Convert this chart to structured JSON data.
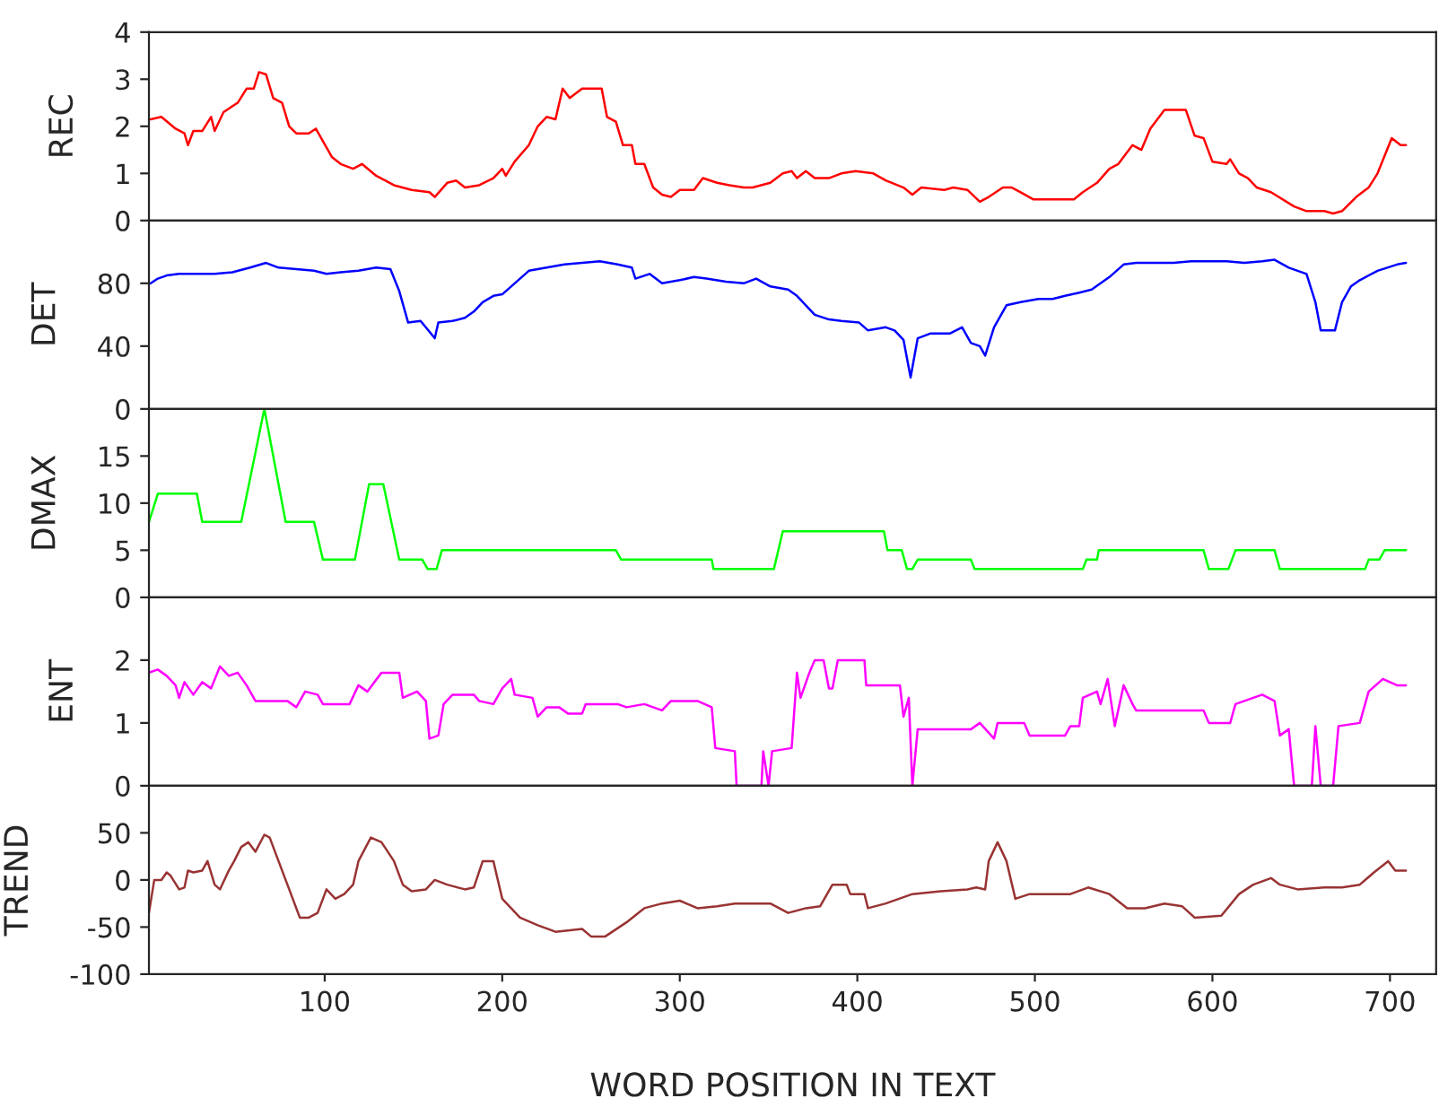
{
  "chart_data": [
    {
      "type": "line",
      "ylabel": "REC",
      "xlim": [
        1,
        726
      ],
      "xticks": [
        100,
        200,
        300,
        400,
        500,
        600,
        700
      ],
      "ylim": [
        0,
        4
      ],
      "yticks": [
        0,
        1,
        2,
        3,
        4
      ],
      "tick_labels": "y",
      "grid": false,
      "x": [
        2,
        8,
        16,
        21,
        23,
        26,
        31,
        36,
        38,
        43,
        51,
        56,
        60,
        63,
        67,
        71,
        76,
        80,
        84,
        91,
        95,
        104,
        109,
        116,
        121,
        129,
        139,
        149,
        159,
        162,
        169,
        174,
        179,
        187,
        195,
        200,
        202,
        207,
        215,
        220,
        225,
        230,
        234,
        238,
        245,
        256,
        259,
        264,
        268,
        273,
        275,
        280,
        285,
        290,
        295,
        300,
        308,
        313,
        321,
        328,
        336,
        341,
        351,
        358,
        363,
        366,
        371,
        376,
        384,
        391,
        399,
        409,
        416,
        426,
        431,
        436,
        449,
        454,
        462,
        469,
        474,
        482,
        487,
        492,
        499,
        512,
        522,
        527,
        535,
        542,
        547,
        555,
        560,
        565,
        573,
        585,
        590,
        595,
        600,
        608,
        610,
        615,
        620,
        625,
        633,
        646,
        653,
        663,
        668,
        673,
        681,
        688,
        693,
        701,
        706,
        709
      ],
      "series": [
        {
          "color": "#ff0000",
          "values": [
            2.15,
            2.2,
            1.95,
            1.85,
            1.6,
            1.9,
            1.9,
            2.2,
            1.9,
            2.3,
            2.5,
            2.8,
            2.8,
            3.15,
            3.1,
            2.6,
            2.5,
            2.0,
            1.85,
            1.85,
            1.95,
            1.35,
            1.2,
            1.1,
            1.2,
            0.95,
            0.75,
            0.65,
            0.6,
            0.5,
            0.8,
            0.85,
            0.7,
            0.75,
            0.9,
            1.1,
            0.95,
            1.25,
            1.6,
            2.0,
            2.2,
            2.15,
            2.8,
            2.6,
            2.8,
            2.8,
            2.2,
            2.1,
            1.6,
            1.6,
            1.2,
            1.2,
            0.7,
            0.55,
            0.5,
            0.65,
            0.65,
            0.9,
            0.8,
            0.75,
            0.7,
            0.7,
            0.8,
            1.0,
            1.05,
            0.9,
            1.05,
            0.9,
            0.9,
            1.0,
            1.05,
            1.0,
            0.85,
            0.7,
            0.55,
            0.7,
            0.65,
            0.7,
            0.65,
            0.4,
            0.5,
            0.7,
            0.7,
            0.6,
            0.45,
            0.45,
            0.45,
            0.6,
            0.8,
            1.1,
            1.2,
            1.6,
            1.5,
            1.95,
            2.35,
            2.35,
            1.8,
            1.75,
            1.25,
            1.2,
            1.3,
            1.0,
            0.9,
            0.7,
            0.6,
            0.3,
            0.2,
            0.2,
            0.15,
            0.2,
            0.5,
            0.7,
            1.0,
            1.75,
            1.6,
            1.6
          ]
        }
      ]
    },
    {
      "type": "line",
      "ylabel": "DET",
      "xlim": [
        1,
        726
      ],
      "xticks": [
        100,
        200,
        300,
        400,
        500,
        600,
        700
      ],
      "ylim": [
        0,
        120
      ],
      "yticks": [
        0,
        40,
        80
      ],
      "tick_labels": "y",
      "grid": false,
      "x": [
        2,
        6,
        11,
        18,
        28,
        38,
        48,
        58,
        67,
        74,
        84,
        94,
        101,
        109,
        119,
        129,
        137,
        142,
        147,
        154,
        162,
        164,
        172,
        179,
        184,
        189,
        195,
        200,
        207,
        215,
        225,
        235,
        245,
        255,
        265,
        273,
        275,
        283,
        290,
        300,
        308,
        315,
        326,
        336,
        343,
        351,
        361,
        366,
        371,
        376,
        384,
        391,
        401,
        406,
        416,
        421,
        426,
        430,
        434,
        441,
        452,
        459,
        464,
        469,
        472,
        477,
        484,
        492,
        502,
        510,
        517,
        525,
        532,
        542,
        550,
        557,
        567,
        578,
        588,
        598,
        608,
        618,
        628,
        635,
        643,
        653,
        658,
        661,
        669,
        673,
        678,
        683,
        693,
        704,
        709
      ],
      "series": [
        {
          "color": "#0000ff",
          "values": [
            80,
            83,
            85,
            86,
            86,
            86,
            87,
            90,
            93,
            90,
            89,
            88,
            86,
            87,
            88,
            90,
            89,
            75,
            55,
            56,
            45,
            55,
            56,
            58,
            62,
            68,
            72,
            73,
            80,
            88,
            90,
            92,
            93,
            94,
            92,
            90,
            83,
            86,
            80,
            82,
            84,
            83,
            81,
            80,
            83,
            78,
            76,
            72,
            66,
            60,
            57,
            56,
            55,
            50,
            52,
            50,
            44,
            20,
            45,
            48,
            48,
            52,
            42,
            40,
            34,
            52,
            66,
            68,
            70,
            70,
            72,
            74,
            76,
            84,
            92,
            93,
            93,
            93,
            94,
            94,
            94,
            93,
            94,
            95,
            90,
            86,
            68,
            50,
            50,
            68,
            78,
            82,
            88,
            92,
            93
          ]
        }
      ]
    },
    {
      "type": "line",
      "ylabel": "DMAX",
      "xlim": [
        1,
        726
      ],
      "xticks": [
        100,
        200,
        300,
        400,
        500,
        600,
        700
      ],
      "ylim": [
        0,
        20
      ],
      "yticks": [
        0,
        5,
        10,
        15
      ],
      "tick_labels": "y",
      "grid": false,
      "x": [
        1,
        6,
        28,
        31,
        53,
        66,
        78,
        94,
        99,
        117,
        125,
        133,
        142,
        155,
        158,
        163,
        166,
        264,
        267,
        318,
        319,
        353,
        358,
        415,
        417,
        425,
        428,
        431,
        434,
        464,
        466,
        527,
        529,
        535,
        536,
        595,
        598,
        609,
        613,
        635,
        638,
        686,
        688,
        694,
        697,
        709
      ],
      "series": [
        {
          "color": "#00ff00",
          "values": [
            8,
            11,
            11,
            8,
            8,
            20,
            8,
            8,
            4,
            4,
            12,
            12,
            4,
            4,
            3,
            3,
            5,
            5,
            4,
            4,
            3,
            3,
            7,
            7,
            5,
            5,
            3,
            3,
            4,
            4,
            3,
            3,
            4,
            4,
            5,
            5,
            3,
            3,
            5,
            5,
            3,
            3,
            4,
            4,
            5,
            5
          ]
        }
      ]
    },
    {
      "type": "line",
      "ylabel": "ENT",
      "xlim": [
        1,
        726
      ],
      "xticks": [
        100,
        200,
        300,
        400,
        500,
        600,
        700
      ],
      "ylim": [
        0,
        3
      ],
      "yticks": [
        0,
        1,
        2
      ],
      "tick_labels": "y",
      "grid": false,
      "x": [
        1,
        6,
        11,
        16,
        18,
        21,
        26,
        31,
        36,
        41,
        46,
        51,
        56,
        61,
        79,
        84,
        89,
        96,
        99,
        114,
        119,
        124,
        132,
        142,
        144,
        152,
        157,
        159,
        164,
        167,
        172,
        184,
        187,
        195,
        200,
        205,
        207,
        217,
        220,
        225,
        232,
        237,
        245,
        247,
        265,
        270,
        280,
        290,
        295,
        310,
        318,
        320,
        331,
        332,
        346,
        347,
        350,
        352,
        363,
        366,
        368,
        373,
        376,
        381,
        384,
        386,
        389,
        404,
        405,
        424,
        426,
        429,
        431,
        434,
        464,
        469,
        477,
        479,
        494,
        497,
        517,
        520,
        525,
        527,
        535,
        537,
        541,
        545,
        550,
        555,
        557,
        573,
        595,
        598,
        610,
        613,
        628,
        635,
        638,
        643,
        646,
        656,
        658,
        661,
        668,
        671,
        683,
        688,
        696,
        704,
        709
      ],
      "series": [
        {
          "color": "#ff00ff",
          "values": [
            1.8,
            1.85,
            1.75,
            1.6,
            1.4,
            1.65,
            1.45,
            1.65,
            1.55,
            1.9,
            1.75,
            1.8,
            1.6,
            1.35,
            1.35,
            1.25,
            1.5,
            1.45,
            1.3,
            1.3,
            1.6,
            1.5,
            1.8,
            1.8,
            1.4,
            1.5,
            1.35,
            0.75,
            0.8,
            1.3,
            1.45,
            1.45,
            1.35,
            1.3,
            1.55,
            1.7,
            1.45,
            1.4,
            1.1,
            1.25,
            1.25,
            1.15,
            1.15,
            1.3,
            1.3,
            1.25,
            1.3,
            1.2,
            1.35,
            1.35,
            1.25,
            0.6,
            0.55,
            0,
            0,
            0.55,
            0,
            0.55,
            0.6,
            1.8,
            1.4,
            1.8,
            2.0,
            2.0,
            1.55,
            1.55,
            2.0,
            2.0,
            1.6,
            1.6,
            1.1,
            1.4,
            0,
            0.9,
            0.9,
            1.0,
            0.75,
            1.0,
            1.0,
            0.8,
            0.8,
            0.95,
            0.95,
            1.4,
            1.5,
            1.3,
            1.7,
            0.95,
            1.6,
            1.3,
            1.2,
            1.2,
            1.2,
            1.0,
            1.0,
            1.3,
            1.45,
            1.35,
            0.8,
            0.9,
            0,
            0,
            0.95,
            0,
            0,
            0.95,
            1.0,
            1.5,
            1.7,
            1.6,
            1.6
          ]
        }
      ]
    },
    {
      "type": "line",
      "ylabel": "TREND",
      "xlabel": "WORD POSITION IN TEXT",
      "xlim": [
        1,
        726
      ],
      "xticks": [
        100,
        200,
        300,
        400,
        500,
        600,
        700
      ],
      "ylim": [
        -100,
        100
      ],
      "yticks": [
        -100,
        -50,
        0,
        50
      ],
      "grid": false,
      "x": [
        1,
        4,
        8,
        11,
        13,
        18,
        21,
        23,
        26,
        31,
        34,
        38,
        41,
        46,
        49,
        53,
        57,
        61,
        66,
        69,
        74,
        79,
        86,
        91,
        96,
        101,
        106,
        111,
        116,
        119,
        126,
        132,
        139,
        144,
        149,
        157,
        162,
        169,
        179,
        184,
        189,
        195,
        200,
        210,
        220,
        230,
        245,
        250,
        258,
        270,
        280,
        290,
        300,
        310,
        321,
        331,
        341,
        351,
        361,
        371,
        379,
        386,
        394,
        396,
        404,
        406,
        416,
        431,
        447,
        462,
        467,
        472,
        474,
        479,
        484,
        489,
        497,
        512,
        520,
        530,
        542,
        552,
        562,
        573,
        583,
        590,
        605,
        615,
        623,
        633,
        638,
        648,
        663,
        673,
        683,
        691,
        699,
        703,
        709
      ],
      "series": [
        {
          "color": "#993333",
          "values": [
            -35,
            0,
            0,
            8,
            5,
            -10,
            -8,
            10,
            8,
            10,
            20,
            -5,
            -10,
            10,
            20,
            35,
            40,
            30,
            48,
            45,
            20,
            -5,
            -40,
            -40,
            -35,
            -10,
            -20,
            -15,
            -5,
            20,
            45,
            40,
            20,
            -5,
            -12,
            -10,
            0,
            -5,
            -10,
            -8,
            20,
            20,
            -20,
            -40,
            -48,
            -55,
            -52,
            -60,
            -60,
            -45,
            -30,
            -25,
            -22,
            -30,
            -28,
            -25,
            -25,
            -25,
            -35,
            -30,
            -28,
            -5,
            -5,
            -15,
            -15,
            -30,
            -25,
            -15,
            -12,
            -10,
            -8,
            -10,
            20,
            40,
            20,
            -20,
            -15,
            -15,
            -15,
            -8,
            -15,
            -30,
            -30,
            -25,
            -28,
            -40,
            -38,
            -15,
            -5,
            2,
            -5,
            -10,
            -8,
            -8,
            -5,
            8,
            20,
            10,
            10
          ]
        }
      ]
    }
  ]
}
